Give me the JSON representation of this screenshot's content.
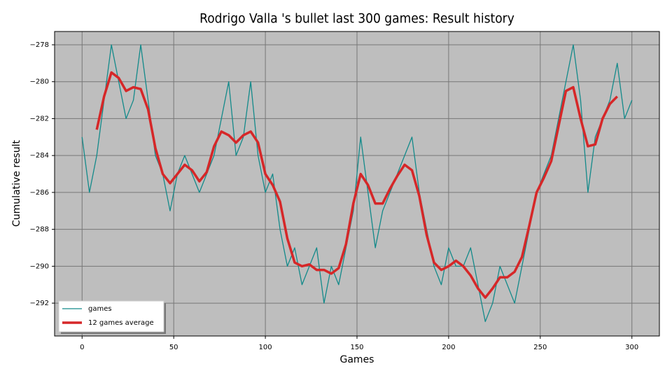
{
  "chart_data": {
    "type": "line",
    "title": "Rodrigo Valla 's bullet last 300 games: Result history",
    "x_label": "Games",
    "y_label": "Cumulative result",
    "x": [
      0,
      4,
      8,
      12,
      16,
      20,
      24,
      28,
      32,
      36,
      40,
      44,
      48,
      52,
      56,
      60,
      64,
      68,
      72,
      76,
      80,
      84,
      88,
      92,
      96,
      100,
      104,
      108,
      112,
      116,
      120,
      124,
      128,
      132,
      136,
      140,
      144,
      148,
      152,
      156,
      160,
      164,
      168,
      172,
      176,
      180,
      184,
      188,
      192,
      196,
      200,
      204,
      208,
      212,
      216,
      220,
      224,
      228,
      232,
      236,
      240,
      244,
      248,
      252,
      256,
      260,
      264,
      268,
      272,
      276,
      280,
      284,
      288,
      292,
      296,
      300
    ],
    "series": [
      {
        "name": "games",
        "color": "#138a8a",
        "values": [
          -283,
          -286,
          -284,
          -281,
          -278,
          -280,
          -282,
          -281,
          -278,
          -281,
          -284,
          -285,
          -287,
          -285,
          -284,
          -285,
          -286,
          -285,
          -284,
          -282,
          -280,
          -284,
          -283,
          -280,
          -284,
          -286,
          -285,
          -288,
          -290,
          -289,
          -291,
          -290,
          -289,
          -292,
          -290,
          -291,
          -289,
          -287,
          -283,
          -286,
          -289,
          -287,
          -286,
          -285,
          -284,
          -283,
          -286,
          -288,
          -290,
          -291,
          -289,
          -290,
          -290,
          -289,
          -291,
          -293,
          -292,
          -290,
          -291,
          -292,
          -290,
          -288,
          -286,
          -285,
          -284,
          -282,
          -280,
          -278,
          -281,
          -286,
          -283,
          -282,
          -281,
          -279,
          -282,
          -281
        ]
      },
      {
        "name": "12 games average",
        "color": "#d62728",
        "values": [
          null,
          null,
          -282.6,
          -280.8,
          -279.5,
          -279.8,
          -280.5,
          -280.3,
          -280.4,
          -281.5,
          -283.6,
          -285.0,
          -285.5,
          -285.0,
          -284.5,
          -284.8,
          -285.4,
          -284.9,
          -283.5,
          -282.7,
          -282.9,
          -283.3,
          -282.9,
          -282.7,
          -283.3,
          -285.0,
          -285.6,
          -286.5,
          -288.5,
          -289.8,
          -290.0,
          -289.9,
          -290.2,
          -290.2,
          -290.4,
          -290.1,
          -288.8,
          -286.6,
          -285.0,
          -285.6,
          -286.6,
          -286.6,
          -285.8,
          -285.1,
          -284.5,
          -284.8,
          -286.2,
          -288.3,
          -289.8,
          -290.2,
          -290.0,
          -289.7,
          -290.0,
          -290.5,
          -291.2,
          -291.7,
          -291.2,
          -290.6,
          -290.6,
          -290.3,
          -289.5,
          -287.8,
          -286.0,
          -285.2,
          -284.3,
          -282.4,
          -280.5,
          -280.3,
          -282.0,
          -283.5,
          -283.4,
          -282.0,
          -281.2,
          -280.8,
          null,
          null
        ]
      }
    ],
    "xlim": [
      -15,
      315
    ],
    "xticks": [
      0,
      50,
      100,
      150,
      200,
      250,
      300
    ],
    "ylim": [
      -293.78,
      -277.28
    ],
    "yticks": [
      {
        "value": -292,
        "label": "−292"
      },
      {
        "value": -290,
        "label": "−290"
      },
      {
        "value": -288,
        "label": "−288"
      },
      {
        "value": -286,
        "label": "−286"
      },
      {
        "value": -284,
        "label": "−284"
      },
      {
        "value": -282,
        "label": "−282"
      },
      {
        "value": -280,
        "label": "−280"
      },
      {
        "value": -278,
        "label": "−278"
      }
    ],
    "grid": true,
    "legend": "lower left"
  }
}
